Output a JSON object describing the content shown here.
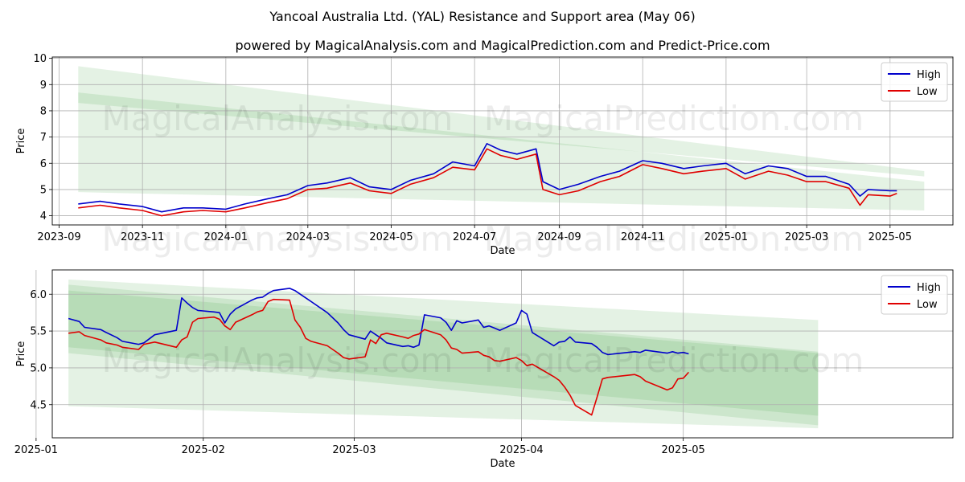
{
  "title": "Yancoal Australia Ltd. (YAL) Resistance and Support area (May 06)",
  "subtitle": "powered by MagicalAnalysis.com and MagicalPrediction.com and Predict-Price.com",
  "watermarks": [
    "MagicalAnalysis.com",
    "MagicalPrediction.com"
  ],
  "colors": {
    "high": "#0000cc",
    "low": "#e00000",
    "band": "#2e9b2e",
    "grid": "#b0b0b0"
  },
  "chart_data": [
    {
      "type": "line",
      "xlabel": "Date",
      "ylabel": "Price",
      "xlim": [
        "2023-08-27",
        "2025-06-16"
      ],
      "ylim": [
        3.65,
        10.05
      ],
      "grid": true,
      "legend": "top-right",
      "xticks": [
        "2023-09",
        "2023-11",
        "2024-01",
        "2024-03",
        "2024-05",
        "2024-07",
        "2024-09",
        "2024-11",
        "2025-01",
        "2025-03",
        "2025-05"
      ],
      "yticks": [
        4,
        5,
        6,
        7,
        8,
        9,
        10
      ],
      "bands": [
        {
          "x": [
            "2023-09-15",
            "2025-05-26"
          ],
          "upper": [
            9.7,
            5.7
          ],
          "lower": [
            8.3,
            5.5
          ]
        },
        {
          "x": [
            "2023-09-15",
            "2025-05-26"
          ],
          "upper": [
            8.7,
            5.3
          ],
          "lower": [
            4.9,
            4.2
          ]
        }
      ],
      "series": [
        {
          "name": "High",
          "x": [
            "2023-09-15",
            "2023-10-01",
            "2023-10-15",
            "2023-11-01",
            "2023-11-15",
            "2023-12-01",
            "2023-12-15",
            "2024-01-01",
            "2024-01-15",
            "2024-02-01",
            "2024-02-15",
            "2024-03-01",
            "2024-03-15",
            "2024-04-01",
            "2024-04-15",
            "2024-05-01",
            "2024-05-15",
            "2024-06-01",
            "2024-06-15",
            "2024-07-01",
            "2024-07-10",
            "2024-07-20",
            "2024-08-01",
            "2024-08-15",
            "2024-08-20",
            "2024-09-01",
            "2024-09-15",
            "2024-10-01",
            "2024-10-15",
            "2024-11-01",
            "2024-11-15",
            "2024-12-01",
            "2024-12-15",
            "2025-01-01",
            "2025-01-15",
            "2025-02-01",
            "2025-02-15",
            "2025-03-01",
            "2025-03-15",
            "2025-04-01",
            "2025-04-09",
            "2025-04-15",
            "2025-05-01",
            "2025-05-06"
          ],
          "values": [
            4.45,
            4.55,
            4.45,
            4.35,
            4.15,
            4.3,
            4.3,
            4.25,
            4.45,
            4.65,
            4.8,
            5.15,
            5.25,
            5.45,
            5.1,
            5.0,
            5.35,
            5.6,
            6.05,
            5.9,
            6.75,
            6.5,
            6.35,
            6.55,
            5.3,
            5.0,
            5.2,
            5.5,
            5.7,
            6.1,
            6.0,
            5.8,
            5.9,
            6.0,
            5.6,
            5.9,
            5.8,
            5.5,
            5.5,
            5.2,
            4.75,
            5.0,
            4.95,
            4.95
          ]
        },
        {
          "name": "Low",
          "x": [
            "2023-09-15",
            "2023-10-01",
            "2023-10-15",
            "2023-11-01",
            "2023-11-15",
            "2023-12-01",
            "2023-12-15",
            "2024-01-01",
            "2024-01-15",
            "2024-02-01",
            "2024-02-15",
            "2024-03-01",
            "2024-03-15",
            "2024-04-01",
            "2024-04-15",
            "2024-05-01",
            "2024-05-15",
            "2024-06-01",
            "2024-06-15",
            "2024-07-01",
            "2024-07-10",
            "2024-07-20",
            "2024-08-01",
            "2024-08-15",
            "2024-08-20",
            "2024-09-01",
            "2024-09-15",
            "2024-10-01",
            "2024-10-15",
            "2024-11-01",
            "2024-11-15",
            "2024-12-01",
            "2024-12-15",
            "2025-01-01",
            "2025-01-15",
            "2025-02-01",
            "2025-02-15",
            "2025-03-01",
            "2025-03-15",
            "2025-04-01",
            "2025-04-09",
            "2025-04-15",
            "2025-05-01",
            "2025-05-06"
          ],
          "values": [
            4.3,
            4.4,
            4.3,
            4.2,
            4.0,
            4.15,
            4.2,
            4.15,
            4.3,
            4.5,
            4.65,
            5.0,
            5.05,
            5.25,
            4.95,
            4.85,
            5.2,
            5.45,
            5.85,
            5.75,
            6.55,
            6.3,
            6.15,
            6.35,
            5.0,
            4.8,
            4.95,
            5.3,
            5.5,
            5.95,
            5.8,
            5.6,
            5.7,
            5.8,
            5.4,
            5.7,
            5.55,
            5.3,
            5.3,
            5.05,
            4.4,
            4.8,
            4.75,
            4.85
          ]
        }
      ]
    },
    {
      "type": "line",
      "xlabel": "Date",
      "ylabel": "Price",
      "xlim": [
        "2025-01-04",
        "2025-06-20"
      ],
      "ylim": [
        4.05,
        6.33
      ],
      "grid": true,
      "legend": "top-right",
      "xticks": [
        "2025-01",
        "2025-02",
        "2025-03",
        "2025-04",
        "2025-05"
      ],
      "yticks": [
        4.5,
        5.0,
        5.5,
        6.0
      ],
      "bands": [
        {
          "x": [
            "2025-01-07",
            "2025-05-26"
          ],
          "upper": [
            6.2,
            5.65
          ],
          "lower": [
            4.48,
            4.18
          ]
        },
        {
          "x": [
            "2025-01-07",
            "2025-05-26"
          ],
          "upper": [
            6.13,
            5.22
          ],
          "lower": [
            5.2,
            4.22
          ]
        },
        {
          "x": [
            "2025-01-07",
            "2025-05-26"
          ],
          "upper": [
            6.05,
            5.2
          ],
          "lower": [
            5.28,
            4.35
          ]
        }
      ],
      "series": [
        {
          "name": "High",
          "x": [
            "2025-01-07",
            "2025-01-09",
            "2025-01-10",
            "2025-01-13",
            "2025-01-14",
            "2025-01-16",
            "2025-01-17",
            "2025-01-20",
            "2025-01-21",
            "2025-01-23",
            "2025-01-27",
            "2025-01-28",
            "2025-01-29",
            "2025-01-30",
            "2025-01-31",
            "2025-02-03",
            "2025-02-04",
            "2025-02-05",
            "2025-02-06",
            "2025-02-07",
            "2025-02-10",
            "2025-02-11",
            "2025-02-12",
            "2025-02-13",
            "2025-02-14",
            "2025-02-17",
            "2025-02-18",
            "2025-02-19",
            "2025-02-20",
            "2025-02-21",
            "2025-02-24",
            "2025-02-25",
            "2025-02-26",
            "2025-02-27",
            "2025-02-28",
            "2025-03-03",
            "2025-03-04",
            "2025-03-05",
            "2025-03-06",
            "2025-03-07",
            "2025-03-10",
            "2025-03-11",
            "2025-03-12",
            "2025-03-13",
            "2025-03-14",
            "2025-03-17",
            "2025-03-18",
            "2025-03-19",
            "2025-03-20",
            "2025-03-21",
            "2025-03-24",
            "2025-03-25",
            "2025-03-26",
            "2025-03-27",
            "2025-03-28",
            "2025-03-31",
            "2025-04-01",
            "2025-04-02",
            "2025-04-03",
            "2025-04-07",
            "2025-04-08",
            "2025-04-09",
            "2025-04-10",
            "2025-04-11",
            "2025-04-14",
            "2025-04-15",
            "2025-04-16",
            "2025-04-17",
            "2025-04-22",
            "2025-04-23",
            "2025-04-24",
            "2025-04-28",
            "2025-04-29",
            "2025-04-30",
            "2025-05-01",
            "2025-05-02"
          ],
          "values": [
            5.67,
            5.63,
            5.55,
            5.52,
            5.48,
            5.41,
            5.36,
            5.32,
            5.34,
            5.45,
            5.51,
            5.95,
            5.88,
            5.82,
            5.78,
            5.76,
            5.75,
            5.61,
            5.73,
            5.8,
            5.92,
            5.95,
            5.96,
            6.01,
            6.05,
            6.08,
            6.05,
            6.0,
            5.95,
            5.9,
            5.75,
            5.68,
            5.61,
            5.52,
            5.45,
            5.39,
            5.5,
            5.45,
            5.4,
            5.34,
            5.29,
            5.3,
            5.28,
            5.31,
            5.72,
            5.68,
            5.62,
            5.51,
            5.64,
            5.61,
            5.65,
            5.55,
            5.57,
            5.54,
            5.51,
            5.61,
            5.78,
            5.73,
            5.48,
            5.3,
            5.35,
            5.36,
            5.42,
            5.35,
            5.33,
            5.28,
            5.21,
            5.18,
            5.22,
            5.21,
            5.24,
            5.2,
            5.22,
            5.2,
            5.21,
            5.19
          ]
        },
        {
          "name": "Low",
          "x": [
            "2025-01-07",
            "2025-01-09",
            "2025-01-10",
            "2025-01-13",
            "2025-01-14",
            "2025-01-16",
            "2025-01-17",
            "2025-01-20",
            "2025-01-21",
            "2025-01-23",
            "2025-01-27",
            "2025-01-28",
            "2025-01-29",
            "2025-01-30",
            "2025-01-31",
            "2025-02-03",
            "2025-02-04",
            "2025-02-05",
            "2025-02-06",
            "2025-02-07",
            "2025-02-10",
            "2025-02-11",
            "2025-02-12",
            "2025-02-13",
            "2025-02-14",
            "2025-02-17",
            "2025-02-18",
            "2025-02-19",
            "2025-02-20",
            "2025-02-21",
            "2025-02-24",
            "2025-02-25",
            "2025-02-26",
            "2025-02-27",
            "2025-02-28",
            "2025-03-03",
            "2025-03-04",
            "2025-03-05",
            "2025-03-06",
            "2025-03-07",
            "2025-03-10",
            "2025-03-11",
            "2025-03-12",
            "2025-03-13",
            "2025-03-14",
            "2025-03-17",
            "2025-03-18",
            "2025-03-19",
            "2025-03-20",
            "2025-03-21",
            "2025-03-24",
            "2025-03-25",
            "2025-03-26",
            "2025-03-27",
            "2025-03-28",
            "2025-03-31",
            "2025-04-01",
            "2025-04-02",
            "2025-04-03",
            "2025-04-07",
            "2025-04-08",
            "2025-04-09",
            "2025-04-10",
            "2025-04-11",
            "2025-04-14",
            "2025-04-15",
            "2025-04-16",
            "2025-04-17",
            "2025-04-22",
            "2025-04-23",
            "2025-04-24",
            "2025-04-28",
            "2025-04-29",
            "2025-04-30",
            "2025-05-01",
            "2025-05-02"
          ],
          "values": [
            5.47,
            5.49,
            5.44,
            5.38,
            5.34,
            5.31,
            5.28,
            5.25,
            5.32,
            5.35,
            5.28,
            5.38,
            5.42,
            5.62,
            5.67,
            5.69,
            5.66,
            5.57,
            5.52,
            5.62,
            5.72,
            5.76,
            5.78,
            5.9,
            5.93,
            5.92,
            5.65,
            5.55,
            5.4,
            5.36,
            5.3,
            5.25,
            5.2,
            5.14,
            5.12,
            5.15,
            5.38,
            5.33,
            5.45,
            5.47,
            5.42,
            5.4,
            5.44,
            5.46,
            5.52,
            5.45,
            5.38,
            5.27,
            5.25,
            5.2,
            5.22,
            5.17,
            5.15,
            5.1,
            5.09,
            5.14,
            5.1,
            5.03,
            5.05,
            4.88,
            4.83,
            4.74,
            4.63,
            4.49,
            4.36,
            4.6,
            4.85,
            4.87,
            4.91,
            4.88,
            4.82,
            4.7,
            4.73,
            4.85,
            4.86,
            4.94
          ]
        }
      ]
    }
  ]
}
